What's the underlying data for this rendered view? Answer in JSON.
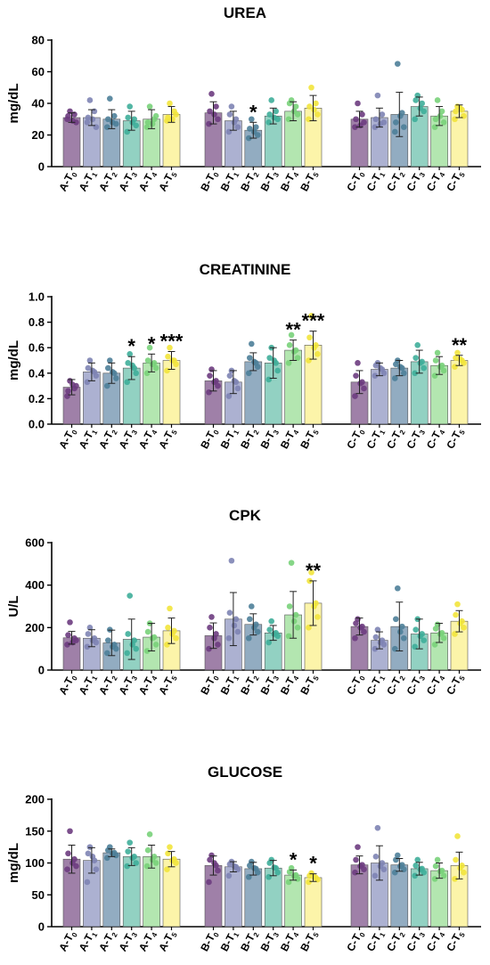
{
  "colors": {
    "T0": "#8e6a99",
    "T1": "#9da3c9",
    "T2": "#7f9eb6",
    "T3": "#7fc9b7",
    "T4": "#a6e2a2",
    "T5": "#fbf29a",
    "dot_T0": "#6d3c80",
    "dot_T1": "#7e84b4",
    "dot_T2": "#4e7f99",
    "dot_T3": "#3fae9a",
    "dot_T4": "#79d27a",
    "dot_T5": "#f2e43c"
  },
  "chart_data": [
    {
      "type": "bar",
      "title": "UREA",
      "ylabel": "mg/dL",
      "ylim": [
        0,
        80
      ],
      "yticks": [
        0,
        20,
        40,
        60,
        80
      ],
      "groups": [
        "A",
        "B",
        "C"
      ],
      "categories": [
        [
          "A-T",
          "0"
        ],
        [
          "A-T",
          "1"
        ],
        [
          "A-T",
          "2"
        ],
        [
          "A-T",
          "3"
        ],
        [
          "A-T",
          "4"
        ],
        [
          "A-T",
          "5"
        ],
        [
          "B-T",
          "0"
        ],
        [
          "B-T",
          "1"
        ],
        [
          "B-T",
          "2"
        ],
        [
          "B-T",
          "3"
        ],
        [
          "B-T",
          "4"
        ],
        [
          "B-T",
          "5"
        ],
        [
          "C-T",
          "0"
        ],
        [
          "C-T",
          "1"
        ],
        [
          "C-T",
          "2"
        ],
        [
          "C-T",
          "3"
        ],
        [
          "C-T",
          "4"
        ],
        [
          "C-T",
          "5"
        ]
      ],
      "values": [
        31,
        31,
        30,
        29,
        30,
        33,
        34,
        29,
        23,
        32,
        35,
        37,
        30,
        31,
        33,
        38,
        32,
        35
      ],
      "errors": [
        3,
        5,
        6,
        6,
        6,
        5,
        7,
        6,
        5,
        5,
        6,
        8,
        5,
        6,
        14,
        6,
        6,
        4
      ],
      "significance": [
        "",
        "",
        "",
        "",
        "",
        "",
        "",
        "",
        "*",
        "",
        "",
        "",
        "",
        "",
        "",
        "",
        "",
        ""
      ],
      "points": [
        [
          30,
          33,
          35,
          28,
          32,
          29
        ],
        [
          28,
          35,
          42,
          25,
          31,
          30
        ],
        [
          25,
          32,
          43,
          27,
          30,
          28
        ],
        [
          22,
          30,
          38,
          26,
          31,
          28
        ],
        [
          25,
          30,
          38,
          32,
          28,
          27
        ],
        [
          29,
          35,
          40,
          33,
          31,
          30
        ],
        [
          27,
          38,
          46,
          30,
          35,
          33
        ],
        [
          22,
          30,
          38,
          25,
          33,
          28
        ],
        [
          18,
          25,
          30,
          20,
          24,
          22
        ],
        [
          28,
          35,
          42,
          30,
          33,
          31
        ],
        [
          30,
          38,
          42,
          33,
          40,
          35
        ],
        [
          30,
          40,
          50,
          33,
          38,
          36
        ],
        [
          25,
          33,
          40,
          28,
          30,
          26
        ],
        [
          25,
          33,
          45,
          28,
          30,
          27
        ],
        [
          22,
          34,
          65,
          25,
          28,
          32
        ],
        [
          30,
          40,
          45,
          35,
          42,
          37
        ],
        [
          25,
          35,
          42,
          28,
          30,
          32
        ],
        [
          30,
          36,
          38,
          32,
          35,
          37
        ]
      ]
    },
    {
      "type": "bar",
      "title": "CREATININE",
      "ylabel": "mg/dL",
      "ylim": [
        0,
        1.0
      ],
      "yticks": [
        "0.0",
        "0.2",
        "0.4",
        "0.6",
        "0.8",
        "1.0"
      ],
      "groups": [
        "A",
        "B",
        "C"
      ],
      "categories": [
        [
          "A-T",
          "0"
        ],
        [
          "A-T",
          "1"
        ],
        [
          "A-T",
          "2"
        ],
        [
          "A-T",
          "3"
        ],
        [
          "A-T",
          "4"
        ],
        [
          "A-T",
          "5"
        ],
        [
          "B-T",
          "0"
        ],
        [
          "B-T",
          "1"
        ],
        [
          "B-T",
          "2"
        ],
        [
          "B-T",
          "3"
        ],
        [
          "B-T",
          "4"
        ],
        [
          "B-T",
          "5"
        ],
        [
          "C-T",
          "0"
        ],
        [
          "C-T",
          "1"
        ],
        [
          "C-T",
          "2"
        ],
        [
          "C-T",
          "3"
        ],
        [
          "C-T",
          "4"
        ],
        [
          "C-T",
          "5"
        ]
      ],
      "values": [
        0.29,
        0.41,
        0.4,
        0.44,
        0.48,
        0.5,
        0.34,
        0.33,
        0.49,
        0.48,
        0.58,
        0.62,
        0.33,
        0.43,
        0.44,
        0.49,
        0.46,
        0.5
      ],
      "errors": [
        0.06,
        0.07,
        0.08,
        0.09,
        0.07,
        0.07,
        0.08,
        0.09,
        0.07,
        0.12,
        0.08,
        0.11,
        0.09,
        0.05,
        0.06,
        0.09,
        0.07,
        0.04
      ],
      "significance": [
        "",
        "",
        "",
        "*",
        "*",
        "***",
        "",
        "",
        "",
        "",
        "**",
        "***",
        "",
        "",
        "",
        "",
        "",
        "**"
      ],
      "points": [
        [
          0.22,
          0.28,
          0.34,
          0.3,
          0.26,
          0.31
        ],
        [
          0.33,
          0.41,
          0.5,
          0.38,
          0.44,
          0.42
        ],
        [
          0.3,
          0.4,
          0.5,
          0.36,
          0.44,
          0.41
        ],
        [
          0.33,
          0.44,
          0.55,
          0.4,
          0.48,
          0.46
        ],
        [
          0.4,
          0.48,
          0.6,
          0.44,
          0.5,
          0.47
        ],
        [
          0.42,
          0.5,
          0.6,
          0.47,
          0.53,
          0.5
        ],
        [
          0.25,
          0.34,
          0.43,
          0.3,
          0.38,
          0.33
        ],
        [
          0.22,
          0.33,
          0.42,
          0.28,
          0.38,
          0.34
        ],
        [
          0.4,
          0.48,
          0.63,
          0.45,
          0.52,
          0.49
        ],
        [
          0.35,
          0.48,
          0.6,
          0.42,
          0.52,
          0.5
        ],
        [
          0.48,
          0.58,
          0.7,
          0.52,
          0.62,
          0.57
        ],
        [
          0.5,
          0.62,
          0.85,
          0.55,
          0.68,
          0.6
        ],
        [
          0.22,
          0.33,
          0.48,
          0.28,
          0.38,
          0.32
        ],
        [
          0.38,
          0.43,
          0.48,
          0.4,
          0.46,
          0.44
        ],
        [
          0.36,
          0.44,
          0.5,
          0.4,
          0.47,
          0.45
        ],
        [
          0.4,
          0.49,
          0.62,
          0.44,
          0.52,
          0.48
        ],
        [
          0.38,
          0.46,
          0.56,
          0.42,
          0.5,
          0.45
        ],
        [
          0.45,
          0.5,
          0.56,
          0.48,
          0.52,
          0.51
        ]
      ]
    },
    {
      "type": "bar",
      "title": "CPK",
      "ylabel": "U/L",
      "ylim": [
        0,
        600
      ],
      "yticks": [
        0,
        200,
        400,
        600
      ],
      "groups": [
        "A",
        "B",
        "C"
      ],
      "categories": [
        [
          "A-T",
          "0"
        ],
        [
          "A-T",
          "1"
        ],
        [
          "A-T",
          "2"
        ],
        [
          "A-T",
          "3"
        ],
        [
          "A-T",
          "4"
        ],
        [
          "A-T",
          "5"
        ],
        [
          "B-T",
          "0"
        ],
        [
          "B-T",
          "1"
        ],
        [
          "B-T",
          "2"
        ],
        [
          "B-T",
          "3"
        ],
        [
          "B-T",
          "4"
        ],
        [
          "B-T",
          "5"
        ],
        [
          "C-T",
          "0"
        ],
        [
          "C-T",
          "1"
        ],
        [
          "C-T",
          "2"
        ],
        [
          "C-T",
          "3"
        ],
        [
          "C-T",
          "4"
        ],
        [
          "C-T",
          "5"
        ]
      ],
      "values": [
        152,
        150,
        128,
        145,
        155,
        185,
        162,
        240,
        215,
        175,
        260,
        315,
        205,
        140,
        205,
        170,
        175,
        230
      ],
      "errors": [
        30,
        40,
        60,
        95,
        65,
        60,
        60,
        125,
        50,
        35,
        110,
        105,
        40,
        40,
        115,
        70,
        45,
        50
      ],
      "significance": [
        "",
        "",
        "",
        "",
        "",
        "",
        "",
        "",
        "",
        "",
        "",
        "**",
        "",
        "",
        "",
        "",
        "",
        ""
      ],
      "points": [
        [
          120,
          150,
          225,
          140,
          165,
          130
        ],
        [
          110,
          150,
          200,
          130,
          170,
          140
        ],
        [
          80,
          120,
          190,
          100,
          140,
          110
        ],
        [
          80,
          140,
          350,
          100,
          170,
          120
        ],
        [
          90,
          155,
          220,
          120,
          180,
          150
        ],
        [
          120,
          185,
          290,
          150,
          200,
          170
        ],
        [
          100,
          170,
          250,
          120,
          200,
          150
        ],
        [
          150,
          240,
          515,
          180,
          270,
          210
        ],
        [
          150,
          215,
          300,
          180,
          240,
          200
        ],
        [
          130,
          175,
          230,
          160,
          190,
          170
        ],
        [
          160,
          260,
          505,
          200,
          300,
          230
        ],
        [
          200,
          315,
          460,
          250,
          420,
          300
        ],
        [
          150,
          205,
          240,
          180,
          220,
          200
        ],
        [
          100,
          140,
          190,
          120,
          155,
          130
        ],
        [
          100,
          205,
          385,
          150,
          240,
          180
        ],
        [
          110,
          170,
          240,
          140,
          190,
          160
        ],
        [
          120,
          175,
          215,
          150,
          195,
          170
        ],
        [
          170,
          230,
          310,
          200,
          260,
          220
        ]
      ]
    },
    {
      "type": "bar",
      "title": "GLUCOSE",
      "ylabel": "mg/dL",
      "ylim": [
        0,
        200
      ],
      "yticks": [
        0,
        50,
        100,
        150,
        200
      ],
      "groups": [
        "A",
        "B",
        "C"
      ],
      "categories": [
        [
          "A-T",
          "0"
        ],
        [
          "A-T",
          "1"
        ],
        [
          "A-T",
          "2"
        ],
        [
          "A-T",
          "3"
        ],
        [
          "A-T",
          "4"
        ],
        [
          "A-T",
          "5"
        ],
        [
          "B-T",
          "0"
        ],
        [
          "B-T",
          "1"
        ],
        [
          "B-T",
          "2"
        ],
        [
          "B-T",
          "3"
        ],
        [
          "B-T",
          "4"
        ],
        [
          "B-T",
          "5"
        ],
        [
          "C-T",
          "0"
        ],
        [
          "C-T",
          "1"
        ],
        [
          "C-T",
          "2"
        ],
        [
          "C-T",
          "3"
        ],
        [
          "C-T",
          "4"
        ],
        [
          "C-T",
          "5"
        ]
      ],
      "values": [
        106,
        104,
        116,
        110,
        110,
        106,
        96,
        94,
        91,
        92,
        81,
        77,
        97,
        100,
        97,
        91,
        88,
        96
      ],
      "errors": [
        22,
        20,
        6,
        14,
        18,
        12,
        15,
        8,
        10,
        12,
        8,
        6,
        14,
        27,
        10,
        10,
        12,
        21
      ],
      "significance": [
        "",
        "",
        "",
        "",
        "",
        "",
        "",
        "",
        "",
        "",
        "*",
        "*",
        "",
        "",
        "",
        "",
        "",
        ""
      ],
      "points": [
        [
          90,
          106,
          150,
          95,
          115,
          100
        ],
        [
          70,
          104,
          125,
          90,
          115,
          110
        ],
        [
          108,
          116,
          125,
          112,
          120,
          115
        ],
        [
          95,
          110,
          132,
          100,
          118,
          108
        ],
        [
          95,
          110,
          145,
          100,
          120,
          105
        ],
        [
          90,
          106,
          125,
          100,
          115,
          104
        ],
        [
          70,
          96,
          112,
          88,
          105,
          100
        ],
        [
          80,
          94,
          102,
          90,
          98,
          95
        ],
        [
          78,
          91,
          102,
          85,
          96,
          92
        ],
        [
          78,
          92,
          105,
          85,
          100,
          93
        ],
        [
          70,
          81,
          92,
          75,
          86,
          80
        ],
        [
          70,
          77,
          84,
          74,
          80,
          78
        ],
        [
          85,
          97,
          125,
          90,
          105,
          95
        ],
        [
          80,
          100,
          155,
          90,
          110,
          95
        ],
        [
          85,
          97,
          112,
          90,
          105,
          95
        ],
        [
          80,
          91,
          105,
          85,
          96,
          90
        ],
        [
          75,
          88,
          105,
          80,
          95,
          87
        ],
        [
          75,
          96,
          142,
          85,
          105,
          92
        ]
      ]
    }
  ]
}
